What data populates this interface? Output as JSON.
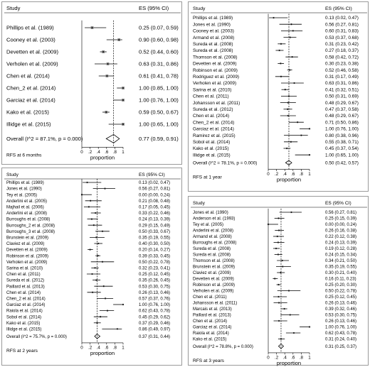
{
  "panels": [
    {
      "id": "tl",
      "study_header": "Study",
      "es_header": "ES (95% CI)",
      "footnote": "RFS at 6 months",
      "xlabel": "proportion",
      "ticks": [
        "0",
        ".2",
        ".4",
        ".6",
        ".8",
        "1"
      ],
      "overall_label": "Overall  (I^2 = 87.1%, p = 0.000)",
      "overall_text": "0.77 (0.59, 0.91)",
      "overall": [
        0.77,
        0.59,
        0.91
      ],
      "dashed": 0.77,
      "rows": [
        {
          "study": "Phillips et al. (1989)",
          "text": "0.25 (0.07, 0.59)",
          "es": 0.25,
          "lo": 0.07,
          "hi": 0.59
        },
        {
          "study": "Cooney et al. (2003)",
          "text": "0.90 (0.60, 0.98)",
          "es": 0.9,
          "lo": 0.6,
          "hi": 0.98
        },
        {
          "study": "Devetten et al. (2009)",
          "text": "0.52 (0.44, 0.60)",
          "es": 0.52,
          "lo": 0.44,
          "hi": 0.6
        },
        {
          "study": "Verholen et al. (2009)",
          "text": "0.63 (0.31, 0.86)",
          "es": 0.63,
          "lo": 0.31,
          "hi": 0.86
        },
        {
          "study": "Chen et al. (2014)",
          "text": "0.61 (0.41, 0.78)",
          "es": 0.61,
          "lo": 0.41,
          "hi": 0.78
        },
        {
          "study": "Chen_2 et al. (2014)",
          "text": "1.00 (0.85, 1.00)",
          "es": 1.0,
          "lo": 0.85,
          "hi": 1.0
        },
        {
          "study": "Garciaz et al. (2014)",
          "text": "1.00 (0.76, 1.00)",
          "es": 1.0,
          "lo": 0.76,
          "hi": 1.0
        },
        {
          "study": "Kako et al. (2015)",
          "text": "0.59 (0.50, 0.67)",
          "es": 0.59,
          "lo": 0.5,
          "hi": 0.67
        },
        {
          "study": "Illidge et al. (2015)",
          "text": "1.00 (0.65, 1.00)",
          "es": 1.0,
          "lo": 0.65,
          "hi": 1.0
        }
      ]
    },
    {
      "id": "tr",
      "study_header": "Study",
      "es_header": "ES (95% CI)",
      "footnote": "RFS at 1 year",
      "xlabel": "proportion",
      "ticks": [
        "0",
        ".2",
        ".4",
        ".6",
        ".8",
        "1"
      ],
      "overall_label": "Overall  (I^2 = 78.1%, p = 0.000)",
      "overall_text": "0.50 (0.42, 0.57)",
      "overall": [
        0.5,
        0.42,
        0.57
      ],
      "dashed": 0.5,
      "rows": [
        {
          "study": "Phillips et al. (1989)",
          "text": "0.13 (0.02, 0.47)",
          "es": 0.13,
          "lo": 0.02,
          "hi": 0.47
        },
        {
          "study": "Jones et al. (1990)",
          "text": "0.56 (0.27, 0.81)",
          "es": 0.56,
          "lo": 0.27,
          "hi": 0.81
        },
        {
          "study": "Cooney et al. (2003)",
          "text": "0.60 (0.31, 0.83)",
          "es": 0.6,
          "lo": 0.31,
          "hi": 0.83
        },
        {
          "study": "Armand et al. (2008)",
          "text": "0.53 (0.37, 0.68)",
          "es": 0.53,
          "lo": 0.37,
          "hi": 0.68
        },
        {
          "study": "Sureda et al. (2008)",
          "text": "0.31 (0.23, 0.42)",
          "es": 0.31,
          "lo": 0.23,
          "hi": 0.42
        },
        {
          "study": "Sureda et al. (2008)",
          "text": "0.27 (0.18, 0.37)",
          "es": 0.27,
          "lo": 0.18,
          "hi": 0.37
        },
        {
          "study": "Thomson et al. (2008)",
          "text": "0.58 (0.42, 0.72)",
          "es": 0.58,
          "lo": 0.42,
          "hi": 0.72
        },
        {
          "study": "Devetten et al. (2009)",
          "text": "0.30 (0.23, 0.38)",
          "es": 0.3,
          "lo": 0.23,
          "hi": 0.38
        },
        {
          "study": "Robinson et al. (2009)",
          "text": "0.52 (0.46, 0.58)",
          "es": 0.52,
          "lo": 0.46,
          "hi": 0.58
        },
        {
          "study": "Rodriguez et al. (2009)",
          "text": "0.31 (0.17, 0.49)",
          "es": 0.31,
          "lo": 0.17,
          "hi": 0.49
        },
        {
          "study": "Verholen et al. (2009)",
          "text": "0.63 (0.31, 0.86)",
          "es": 0.63,
          "lo": 0.31,
          "hi": 0.86
        },
        {
          "study": "Sarina et al. (2010)",
          "text": "0.41 (0.32, 0.51)",
          "es": 0.41,
          "lo": 0.32,
          "hi": 0.51
        },
        {
          "study": "Chen et al. (2011)",
          "text": "0.50 (0.31, 0.69)",
          "es": 0.5,
          "lo": 0.31,
          "hi": 0.69
        },
        {
          "study": "Johansson et al. (2011)",
          "text": "0.48 (0.29, 0.67)",
          "es": 0.48,
          "lo": 0.29,
          "hi": 0.67
        },
        {
          "study": "Sureda et al. (2012)",
          "text": "0.47 (0.37, 0.58)",
          "es": 0.47,
          "lo": 0.37,
          "hi": 0.58
        },
        {
          "study": "Chen et al. (2014)",
          "text": "0.48 (0.29, 0.67)",
          "es": 0.48,
          "lo": 0.29,
          "hi": 0.67
        },
        {
          "study": "Chen_2 et al. (2014)",
          "text": "0.71 (0.50, 0.86)",
          "es": 0.71,
          "lo": 0.5,
          "hi": 0.86
        },
        {
          "study": "Garciaz et al. (2014)",
          "text": "1.00 (0.76, 1.00)",
          "es": 1.0,
          "lo": 0.76,
          "hi": 1.0
        },
        {
          "study": "Ramirez et al. (2015)",
          "text": "0.80 (0.38, 0.96)",
          "es": 0.8,
          "lo": 0.38,
          "hi": 0.96
        },
        {
          "study": "Sobol et al. (2014)",
          "text": "0.55 (0.38, 0.71)",
          "es": 0.55,
          "lo": 0.38,
          "hi": 0.71
        },
        {
          "study": "Kako et al. (2015)",
          "text": "0.45 (0.37, 0.54)",
          "es": 0.45,
          "lo": 0.37,
          "hi": 0.54
        },
        {
          "study": "Illidge et al. (2015)",
          "text": "1.00 (0.65, 1.00)",
          "es": 1.0,
          "lo": 0.65,
          "hi": 1.0
        }
      ]
    },
    {
      "id": "bl",
      "study_header": "Study",
      "es_header": "ES (95% CI)",
      "footnote": "RFS at 2 years",
      "xlabel": "proportion",
      "ticks": [
        "0",
        ".2",
        ".4",
        ".6",
        ".8",
        "1"
      ],
      "overall_label": "Overall  (I^2 = 75.7%, p = 0.000)",
      "overall_text": "0.37 (0.31, 0.44)",
      "overall": [
        0.37,
        0.31,
        0.44
      ],
      "dashed": 0.37,
      "rows": [
        {
          "study": "Phillips et al. (1989)",
          "text": "0.13 (0.02, 0.47)",
          "es": 0.13,
          "lo": 0.02,
          "hi": 0.47
        },
        {
          "study": "Jones et al. (1990)",
          "text": "0.56 (0.27, 0.81)",
          "es": 0.56,
          "lo": 0.27,
          "hi": 0.81
        },
        {
          "study": "Tey et al. (2005)",
          "text": "0.00 (0.00, 0.24)",
          "es": 0.0,
          "lo": 0.0,
          "hi": 0.24
        },
        {
          "study": "Anderlini et al. (2005)",
          "text": "0.21 (0.08, 0.48)",
          "es": 0.21,
          "lo": 0.08,
          "hi": 0.48
        },
        {
          "study": "Majhail et al. (2006)",
          "text": "0.17 (0.05, 0.45)",
          "es": 0.17,
          "lo": 0.05,
          "hi": 0.45
        },
        {
          "study": "Anderlini et al. (2008)",
          "text": "0.33 (0.22, 0.46)",
          "es": 0.33,
          "lo": 0.22,
          "hi": 0.46
        },
        {
          "study": "Burroughs et al. (2008)",
          "text": "0.24 (0.13, 0.39)",
          "es": 0.24,
          "lo": 0.13,
          "hi": 0.39
        },
        {
          "study": "Burroughs_2 et al. (2008)",
          "text": "0.29 (0.15, 0.49)",
          "es": 0.29,
          "lo": 0.15,
          "hi": 0.49
        },
        {
          "study": "Burroughs_3 et al. (2008)",
          "text": "0.50 (0.33, 0.67)",
          "es": 0.5,
          "lo": 0.33,
          "hi": 0.67
        },
        {
          "study": "Brunstein et al. (2009)",
          "text": "0.35 (0.19, 0.55)",
          "es": 0.35,
          "lo": 0.19,
          "hi": 0.55
        },
        {
          "study": "Claviez et al. (2009)",
          "text": "0.40 (0.30, 0.50)",
          "es": 0.4,
          "lo": 0.3,
          "hi": 0.5
        },
        {
          "study": "Devetten et al. (2009)",
          "text": "0.20 (0.14, 0.27)",
          "es": 0.2,
          "lo": 0.14,
          "hi": 0.27
        },
        {
          "study": "Robinson et al. (2009)",
          "text": "0.39 (0.33, 0.45)",
          "es": 0.39,
          "lo": 0.33,
          "hi": 0.45
        },
        {
          "study": "Verholen et al. (2009)",
          "text": "0.50 (0.22, 0.78)",
          "es": 0.5,
          "lo": 0.22,
          "hi": 0.78
        },
        {
          "study": "Sarina et al. (2010)",
          "text": "0.32 (0.23, 0.41)",
          "es": 0.32,
          "lo": 0.23,
          "hi": 0.41
        },
        {
          "study": "Chen et al. (2011)",
          "text": "0.25 (0.12, 0.45)",
          "es": 0.25,
          "lo": 0.12,
          "hi": 0.45
        },
        {
          "study": "Sureda et al. (2012)",
          "text": "0.35 (0.26, 0.45)",
          "es": 0.35,
          "lo": 0.26,
          "hi": 0.45
        },
        {
          "study": "Paillard et al. (2013)",
          "text": "0.53 (0.30, 0.75)",
          "es": 0.53,
          "lo": 0.3,
          "hi": 0.75
        },
        {
          "study": "Chen et al. (2014)",
          "text": "0.26 (0.13, 0.46)",
          "es": 0.26,
          "lo": 0.13,
          "hi": 0.46
        },
        {
          "study": "Chen_2 et al. (2014)",
          "text": "0.57 (0.37, 0.76)",
          "es": 0.57,
          "lo": 0.37,
          "hi": 0.76
        },
        {
          "study": "Garciaz et al. (2014)",
          "text": "1.00 (0.76, 1.00)",
          "es": 1.0,
          "lo": 0.76,
          "hi": 1.0
        },
        {
          "study": "Raiola et al. (2014)",
          "text": "0.62 (0.43, 0.78)",
          "es": 0.62,
          "lo": 0.43,
          "hi": 0.78
        },
        {
          "study": "Sobol et al. (2014)",
          "text": "0.45 (0.29, 0.62)",
          "es": 0.45,
          "lo": 0.29,
          "hi": 0.62
        },
        {
          "study": "Kako et al. (2015)",
          "text": "0.37 (0.29, 0.46)",
          "es": 0.37,
          "lo": 0.29,
          "hi": 0.46
        },
        {
          "study": "Illidge et al. (2015)",
          "text": "0.86 (0.49, 0.97)",
          "es": 0.86,
          "lo": 0.49,
          "hi": 0.97
        }
      ]
    },
    {
      "id": "br",
      "study_header": "Study",
      "es_header": "ES (95% CI)",
      "footnote": "RFS at 3 years",
      "xlabel": "proportion",
      "ticks": [
        "0",
        ".2",
        ".4",
        ".6",
        ".8",
        "1"
      ],
      "overall_label": "Overall  (I^2 = 78.8%, p = 0.000)",
      "overall_text": "0.31 (0.25, 0.37)",
      "overall": [
        0.31,
        0.25,
        0.37
      ],
      "dashed": 0.31,
      "rows": [
        {
          "study": "Jones et al. (1990)",
          "text": "0.56 (0.27, 0.81)",
          "es": 0.56,
          "lo": 0.27,
          "hi": 0.81
        },
        {
          "study": "Anderson et al. (1993)",
          "text": "0.25 (0.15, 0.39)",
          "es": 0.25,
          "lo": 0.15,
          "hi": 0.39
        },
        {
          "study": "Tey et al. (2005)",
          "text": "0.00 (0.00, 0.24)",
          "es": 0.0,
          "lo": 0.0,
          "hi": 0.24
        },
        {
          "study": "Anderlini et al. (2008)",
          "text": "0.26 (0.16, 0.38)",
          "es": 0.26,
          "lo": 0.16,
          "hi": 0.38
        },
        {
          "study": "Armand et al. (2008)",
          "text": "0.22 (0.12, 0.38)",
          "es": 0.22,
          "lo": 0.12,
          "hi": 0.38
        },
        {
          "study": "Burroughs et al. (2008)",
          "text": "0.24 (0.13, 0.39)",
          "es": 0.24,
          "lo": 0.13,
          "hi": 0.39
        },
        {
          "study": "Sureda et al. (2008)",
          "text": "0.19 (0.12, 0.28)",
          "es": 0.19,
          "lo": 0.12,
          "hi": 0.28
        },
        {
          "study": "Sureda et al. (2008)",
          "text": "0.24 (0.15, 0.34)",
          "es": 0.24,
          "lo": 0.15,
          "hi": 0.34
        },
        {
          "study": "Thomson et al. (2008)",
          "text": "0.34 (0.21, 0.50)",
          "es": 0.34,
          "lo": 0.21,
          "hi": 0.5
        },
        {
          "study": "Brunstein et al. (2009)",
          "text": "0.35 (0.19, 0.55)",
          "es": 0.35,
          "lo": 0.19,
          "hi": 0.55
        },
        {
          "study": "Claviez et al. (2009)",
          "text": "0.30 (0.21, 0.40)",
          "es": 0.3,
          "lo": 0.21,
          "hi": 0.4
        },
        {
          "study": "Devetten et al. (2009)",
          "text": "0.16 (0.11, 0.23)",
          "es": 0.16,
          "lo": 0.11,
          "hi": 0.23
        },
        {
          "study": "Robinson et al. (2009)",
          "text": "0.25 (0.20, 0.30)",
          "es": 0.25,
          "lo": 0.2,
          "hi": 0.3
        },
        {
          "study": "Verholen et al. (2009)",
          "text": "0.50 (0.22, 0.78)",
          "es": 0.5,
          "lo": 0.22,
          "hi": 0.78
        },
        {
          "study": "Chen et al. (2011)",
          "text": "0.25 (0.12, 0.45)",
          "es": 0.25,
          "lo": 0.12,
          "hi": 0.45
        },
        {
          "study": "Johansson et al. (2011)",
          "text": "0.26 (0.13, 0.46)",
          "es": 0.26,
          "lo": 0.13,
          "hi": 0.46
        },
        {
          "study": "Marcais et al. (2013)",
          "text": "0.39 (0.32, 0.46)",
          "es": 0.39,
          "lo": 0.32,
          "hi": 0.46
        },
        {
          "study": "Paillard et al. (2013)",
          "text": "0.53 (0.30, 0.75)",
          "es": 0.53,
          "lo": 0.3,
          "hi": 0.75
        },
        {
          "study": "Chen et al. (2014)",
          "text": "0.26 (0.13, 0.46)",
          "es": 0.26,
          "lo": 0.13,
          "hi": 0.46
        },
        {
          "study": "Garciaz et al. (2014)",
          "text": "1.00 (0.76, 1.00)",
          "es": 1.0,
          "lo": 0.76,
          "hi": 1.0
        },
        {
          "study": "Raiola et al. (2014)",
          "text": "0.62 (0.43, 0.78)",
          "es": 0.62,
          "lo": 0.43,
          "hi": 0.78
        },
        {
          "study": "Kako et al. (2015)",
          "text": "0.31 (0.24, 0.40)",
          "es": 0.31,
          "lo": 0.24,
          "hi": 0.4
        }
      ]
    }
  ]
}
